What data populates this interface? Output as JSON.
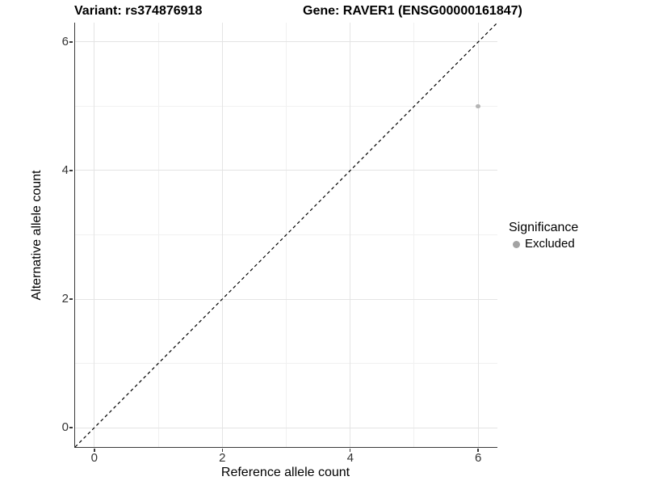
{
  "chart_data": {
    "type": "scatter",
    "title_left": "Variant: rs374876918",
    "title_right": "Gene: RAVER1 (ENSG00000161847)",
    "xlabel": "Reference allele count",
    "ylabel": "Alternative allele count",
    "xlim": [
      -0.3,
      6.3
    ],
    "ylim": [
      -0.3,
      6.3
    ],
    "x_ticks": [
      0,
      2,
      4,
      6
    ],
    "y_ticks": [
      0,
      2,
      4,
      6
    ],
    "x_minor_ticks": [
      1,
      3,
      5
    ],
    "y_minor_ticks": [
      1,
      3,
      5
    ],
    "grid": {
      "major_color": "#e4e4e4",
      "minor_color": "#f1f1f1"
    },
    "axis_line_color": "#3a3a3a",
    "reference_line": {
      "slope": 1,
      "intercept": 0,
      "style": "dashed",
      "color": "#000000"
    },
    "series": [
      {
        "name": "Excluded",
        "marker": "circle",
        "color": "#b5b5b5",
        "points": [
          {
            "x": 6,
            "y": 5
          }
        ]
      }
    ],
    "legend": {
      "title": "Significance",
      "position": "right",
      "entries": [
        {
          "label": "Excluded",
          "color": "#a3a3a3"
        }
      ]
    }
  }
}
